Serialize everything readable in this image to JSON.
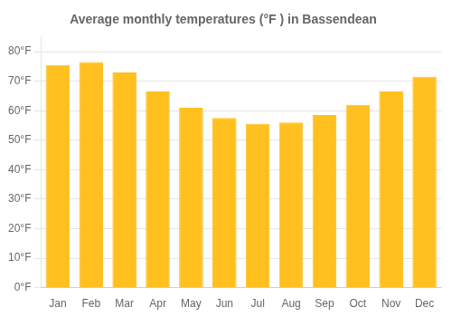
{
  "chart_data": {
    "type": "bar",
    "title": "Average monthly temperatures (°F ) in Bassendean",
    "categories": [
      "Jan",
      "Feb",
      "Mar",
      "Apr",
      "May",
      "Jun",
      "Jul",
      "Aug",
      "Sep",
      "Oct",
      "Nov",
      "Dec"
    ],
    "values": [
      75.5,
      76.5,
      73.0,
      66.5,
      61.0,
      57.5,
      55.5,
      56.0,
      58.5,
      62.0,
      66.5,
      71.5
    ],
    "color": "#FFC020",
    "ylim": [
      0,
      85
    ],
    "yticks": [
      {
        "value": 0,
        "label": "0°F"
      },
      {
        "value": 10,
        "label": "10°F"
      },
      {
        "value": 20,
        "label": "20°F"
      },
      {
        "value": 30,
        "label": "30°F"
      },
      {
        "value": 40,
        "label": "40°F"
      },
      {
        "value": 50,
        "label": "50°F"
      },
      {
        "value": 60,
        "label": "60°F"
      },
      {
        "value": 70,
        "label": "70°F"
      },
      {
        "value": 80,
        "label": "80°F"
      }
    ],
    "grid": true
  }
}
